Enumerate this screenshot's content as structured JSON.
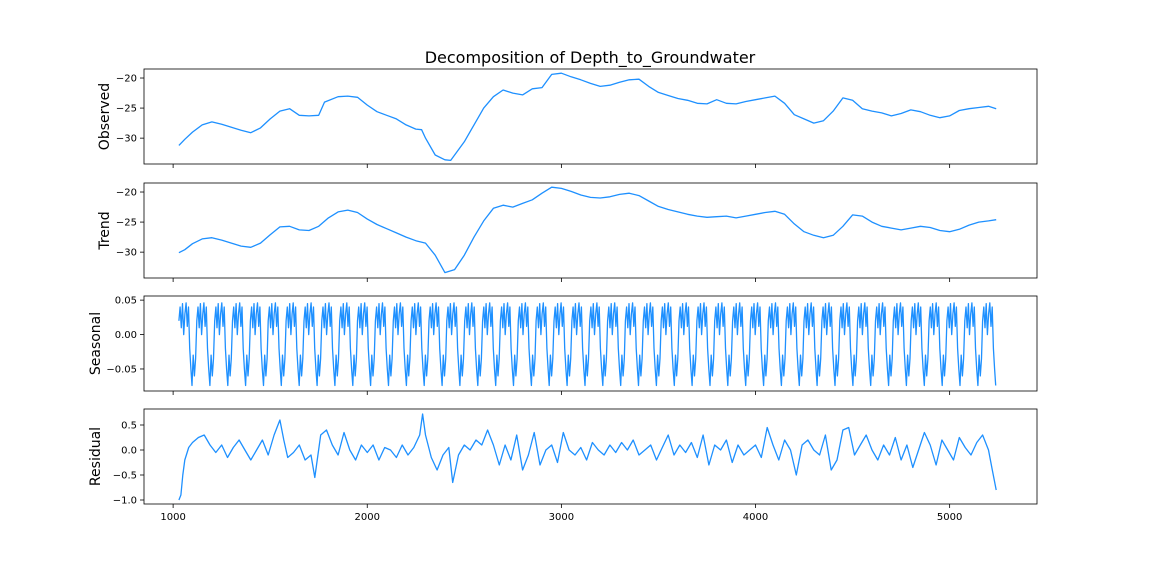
{
  "chart_data": {
    "type": "line",
    "title": "Decomposition of Depth_to_Groundwater",
    "xlim": [
      850,
      5450
    ],
    "x_ticks": [
      1000,
      2000,
      3000,
      4000,
      5000
    ],
    "x_tick_labels": [
      "1000",
      "2000",
      "3000",
      "4000",
      "5000"
    ],
    "line_color": "#1e90ff",
    "panels": [
      {
        "key": "observed",
        "ylabel": "Observed",
        "ylim": [
          -34.3,
          -18.5
        ],
        "y_ticks": [
          -30,
          -25,
          -20
        ],
        "y_tick_labels": [
          "−30",
          "−25",
          "−20"
        ],
        "x": [
          1030,
          1060,
          1100,
          1150,
          1200,
          1250,
          1300,
          1350,
          1400,
          1450,
          1500,
          1550,
          1600,
          1650,
          1700,
          1750,
          1780,
          1850,
          1900,
          1950,
          2000,
          2050,
          2100,
          2150,
          2200,
          2250,
          2280,
          2300,
          2350,
          2400,
          2430,
          2500,
          2550,
          2600,
          2650,
          2700,
          2750,
          2800,
          2850,
          2900,
          2950,
          3000,
          3050,
          3100,
          3150,
          3200,
          3250,
          3300,
          3350,
          3400,
          3450,
          3500,
          3550,
          3600,
          3650,
          3700,
          3750,
          3800,
          3850,
          3900,
          3950,
          4000,
          4050,
          4100,
          4150,
          4200,
          4250,
          4300,
          4350,
          4400,
          4450,
          4500,
          4550,
          4600,
          4650,
          4700,
          4750,
          4800,
          4850,
          4900,
          4950,
          5000,
          5050,
          5100,
          5150,
          5200,
          5240
        ],
        "y": [
          -31.2,
          -30.2,
          -29,
          -27.8,
          -27.3,
          -27.7,
          -28.2,
          -28.7,
          -29.1,
          -28.3,
          -26.8,
          -25.5,
          -25.1,
          -26.2,
          -26.3,
          -26.2,
          -24,
          -23.1,
          -23,
          -23.2,
          -24.5,
          -25.6,
          -26.2,
          -26.8,
          -27.8,
          -28.5,
          -28.6,
          -30,
          -32.8,
          -33.6,
          -33.7,
          -30.6,
          -27.8,
          -25,
          -23.1,
          -22,
          -22.5,
          -22.8,
          -21.8,
          -21.6,
          -19.4,
          -19.2,
          -19.8,
          -20.3,
          -20.9,
          -21.4,
          -21.2,
          -20.7,
          -20.3,
          -20.2,
          -21.4,
          -22.4,
          -22.9,
          -23.4,
          -23.7,
          -24.2,
          -24.3,
          -23.6,
          -24.2,
          -24.3,
          -23.9,
          -23.6,
          -23.3,
          -23,
          -24.2,
          -26.1,
          -26.8,
          -27.5,
          -27.1,
          -25.5,
          -23.3,
          -23.7,
          -25.1,
          -25.5,
          -25.8,
          -26.3,
          -25.9,
          -25.3,
          -25.6,
          -26.2,
          -26.6,
          -26.3,
          -25.4,
          -25.1,
          -24.9,
          -24.7,
          -25.1
        ]
      },
      {
        "key": "trend",
        "ylabel": "Trend",
        "ylim": [
          -34.3,
          -18.5
        ],
        "y_ticks": [
          -30,
          -25,
          -20
        ],
        "y_tick_labels": [
          "−30",
          "−25",
          "−20"
        ],
        "x": [
          1030,
          1060,
          1100,
          1150,
          1200,
          1250,
          1300,
          1350,
          1400,
          1450,
          1500,
          1550,
          1600,
          1650,
          1700,
          1750,
          1800,
          1850,
          1900,
          1950,
          2000,
          2050,
          2100,
          2150,
          2200,
          2250,
          2300,
          2350,
          2400,
          2450,
          2500,
          2550,
          2600,
          2650,
          2700,
          2750,
          2800,
          2850,
          2900,
          2950,
          3000,
          3050,
          3100,
          3150,
          3200,
          3250,
          3300,
          3350,
          3400,
          3450,
          3500,
          3550,
          3600,
          3650,
          3700,
          3750,
          3800,
          3850,
          3900,
          3950,
          4000,
          4050,
          4100,
          4150,
          4200,
          4250,
          4300,
          4350,
          4400,
          4450,
          4500,
          4550,
          4600,
          4650,
          4700,
          4750,
          4800,
          4850,
          4900,
          4950,
          5000,
          5050,
          5100,
          5150,
          5200,
          5240
        ],
        "y": [
          -30.1,
          -29.6,
          -28.6,
          -27.8,
          -27.6,
          -28,
          -28.5,
          -29,
          -29.2,
          -28.5,
          -27.1,
          -25.8,
          -25.7,
          -26.3,
          -26.4,
          -25.7,
          -24.3,
          -23.3,
          -23,
          -23.4,
          -24.5,
          -25.4,
          -26.1,
          -26.8,
          -27.5,
          -28.1,
          -28.5,
          -30.5,
          -33.4,
          -32.9,
          -30.5,
          -27.5,
          -24.8,
          -22.7,
          -22.2,
          -22.5,
          -21.9,
          -21.3,
          -20.2,
          -19.2,
          -19.4,
          -19.9,
          -20.5,
          -20.9,
          -21,
          -20.8,
          -20.4,
          -20.2,
          -20.6,
          -21.5,
          -22.4,
          -22.9,
          -23.3,
          -23.7,
          -24,
          -24.2,
          -24.1,
          -24,
          -24.3,
          -24,
          -23.7,
          -23.4,
          -23.2,
          -23.7,
          -25.3,
          -26.6,
          -27.2,
          -27.6,
          -27.2,
          -25.7,
          -23.8,
          -24,
          -25,
          -25.7,
          -26,
          -26.3,
          -26,
          -25.7,
          -25.9,
          -26.4,
          -26.6,
          -26.2,
          -25.5,
          -25,
          -24.8,
          -24.6
        ]
      },
      {
        "key": "seasonal",
        "ylabel": "Seasonal",
        "ylim": [
          -0.082,
          0.056
        ],
        "y_ticks": [
          -0.05,
          0,
          0.05
        ],
        "y_tick_labels": [
          "−0.05",
          "0.00",
          "0.05"
        ],
        "period": 92,
        "x_start": 1030,
        "x_end": 5240,
        "cycle": [
          0.02,
          0.04,
          0.01,
          0.045,
          0.0,
          0.03,
          0.046,
          0.012,
          0.04,
          -0.02,
          -0.05,
          -0.074,
          -0.03,
          -0.06,
          -0.035
        ]
      },
      {
        "key": "residual",
        "ylabel": "Residual",
        "ylim": [
          -1.08,
          0.82
        ],
        "y_ticks": [
          -1.0,
          -0.5,
          0.0,
          0.5
        ],
        "y_tick_labels": [
          "−1.0",
          "−0.5",
          "0.0",
          "0.5"
        ],
        "x": [
          1030,
          1040,
          1050,
          1060,
          1080,
          1100,
          1130,
          1160,
          1190,
          1220,
          1250,
          1280,
          1310,
          1340,
          1370,
          1400,
          1430,
          1460,
          1490,
          1520,
          1550,
          1570,
          1590,
          1620,
          1650,
          1680,
          1710,
          1730,
          1760,
          1790,
          1820,
          1850,
          1880,
          1910,
          1940,
          1970,
          2000,
          2030,
          2060,
          2090,
          2120,
          2150,
          2180,
          2210,
          2240,
          2270,
          2285,
          2300,
          2330,
          2360,
          2390,
          2420,
          2440,
          2470,
          2500,
          2530,
          2560,
          2590,
          2620,
          2650,
          2680,
          2710,
          2740,
          2770,
          2800,
          2830,
          2860,
          2890,
          2920,
          2950,
          2980,
          3010,
          3040,
          3070,
          3100,
          3130,
          3160,
          3190,
          3220,
          3250,
          3280,
          3310,
          3340,
          3370,
          3400,
          3430,
          3460,
          3490,
          3520,
          3550,
          3580,
          3610,
          3640,
          3670,
          3700,
          3730,
          3760,
          3790,
          3820,
          3850,
          3880,
          3910,
          3940,
          3970,
          4000,
          4030,
          4060,
          4090,
          4120,
          4150,
          4180,
          4210,
          4240,
          4270,
          4300,
          4330,
          4360,
          4390,
          4420,
          4450,
          4480,
          4510,
          4540,
          4570,
          4600,
          4630,
          4660,
          4690,
          4720,
          4750,
          4780,
          4810,
          4840,
          4870,
          4900,
          4930,
          4960,
          4990,
          5020,
          5050,
          5080,
          5110,
          5140,
          5170,
          5200,
          5220,
          5240
        ],
        "y": [
          -1.0,
          -0.9,
          -0.5,
          -0.2,
          0.05,
          0.15,
          0.25,
          0.3,
          0.1,
          -0.05,
          0.1,
          -0.15,
          0.05,
          0.2,
          0.0,
          -0.2,
          0.0,
          0.2,
          -0.1,
          0.3,
          0.6,
          0.2,
          -0.15,
          -0.05,
          0.1,
          -0.2,
          -0.1,
          -0.55,
          0.3,
          0.4,
          0.1,
          -0.1,
          0.35,
          0.0,
          -0.2,
          0.1,
          -0.05,
          0.1,
          -0.2,
          0.05,
          0.0,
          -0.15,
          0.1,
          -0.1,
          0.05,
          0.3,
          0.72,
          0.3,
          -0.15,
          -0.4,
          -0.1,
          0.05,
          -0.65,
          -0.1,
          0.1,
          0.0,
          0.2,
          0.1,
          0.4,
          0.1,
          -0.3,
          0.1,
          -0.2,
          0.3,
          -0.4,
          -0.1,
          0.35,
          -0.3,
          0.0,
          0.1,
          -0.25,
          0.35,
          0.0,
          -0.1,
          0.05,
          -0.2,
          0.15,
          0.0,
          -0.1,
          0.1,
          -0.05,
          0.15,
          0.0,
          0.2,
          -0.1,
          0.0,
          0.1,
          -0.2,
          0.05,
          0.3,
          -0.1,
          0.1,
          -0.05,
          0.15,
          -0.15,
          0.3,
          -0.3,
          0.1,
          0.0,
          0.2,
          -0.25,
          0.1,
          -0.1,
          0.0,
          0.1,
          -0.15,
          0.45,
          0.1,
          -0.2,
          0.2,
          0.0,
          -0.5,
          0.1,
          0.2,
          0.0,
          -0.1,
          0.3,
          -0.4,
          -0.2,
          0.4,
          0.45,
          -0.1,
          0.1,
          0.3,
          0.0,
          -0.2,
          0.1,
          -0.1,
          0.25,
          -0.2,
          0.1,
          -0.35,
          0.0,
          0.35,
          0.1,
          -0.3,
          0.2,
          0.0,
          -0.2,
          0.25,
          0.05,
          -0.1,
          0.15,
          0.3,
          0.0,
          -0.4,
          -0.8
        ]
      }
    ]
  }
}
